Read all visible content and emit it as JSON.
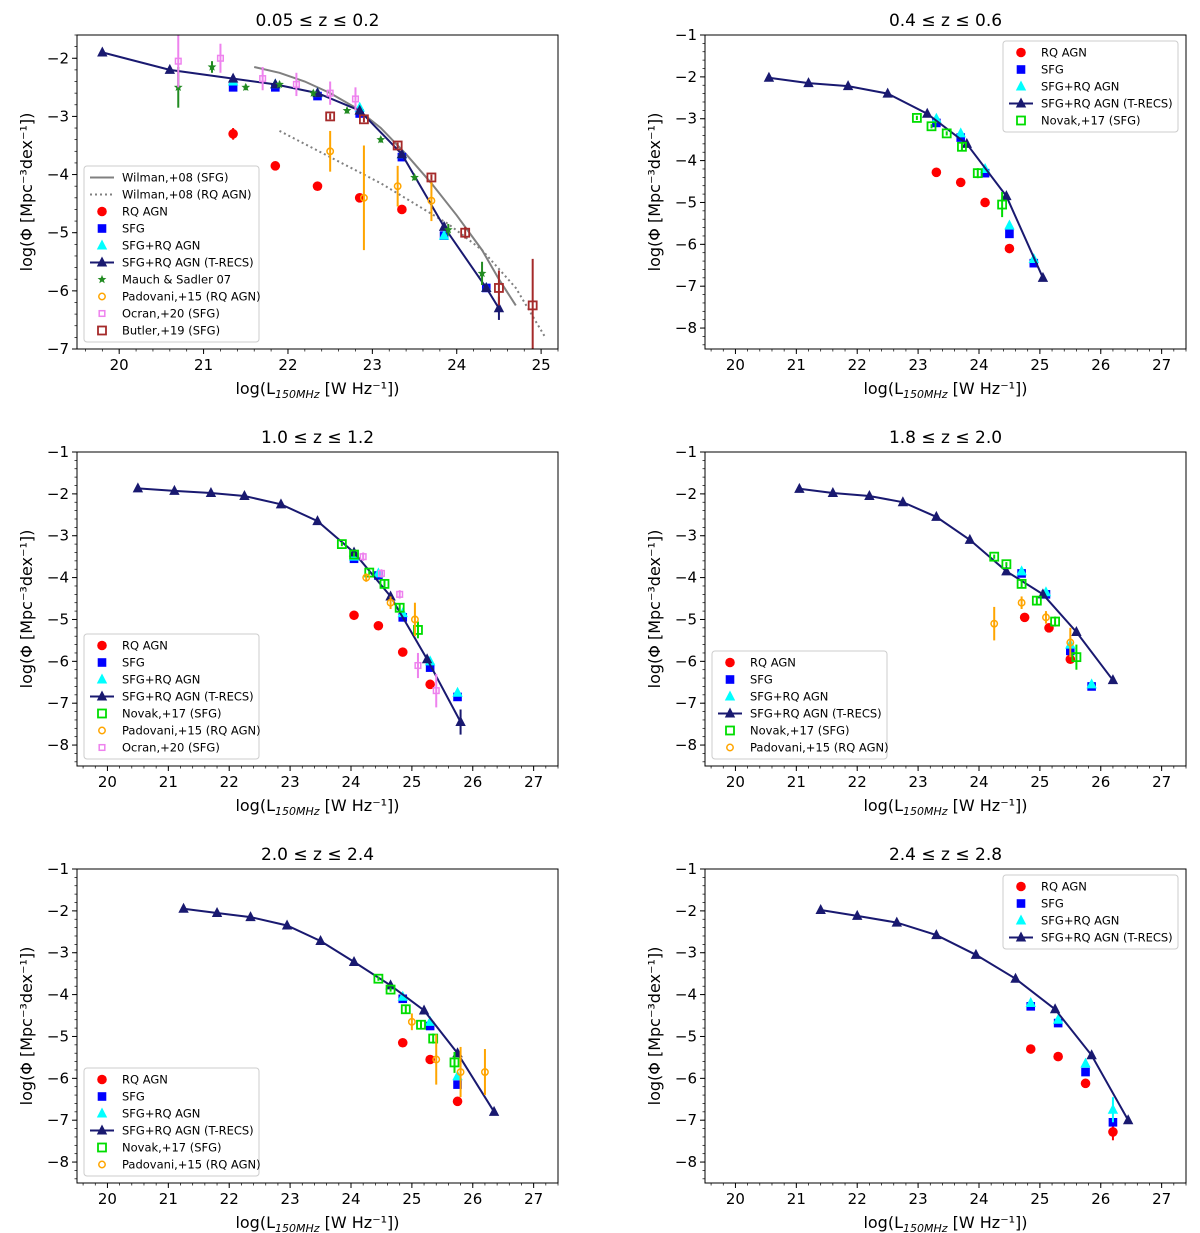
{
  "figure": {
    "ylabel": "log(Φ [Mpc⁻³dex⁻¹])",
    "xlabel_prefix": "log(L",
    "xlabel_sub": "150MHz",
    "xlabel_suffix": " [W Hz⁻¹])"
  },
  "styles": {
    "RQ AGN": {
      "marker": "circle",
      "color": "#ff0000",
      "label": "RQ AGN"
    },
    "SFG": {
      "marker": "square",
      "color": "#0000ff",
      "label": "SFG"
    },
    "SFG+RQ AGN": {
      "marker": "triangle",
      "color": "#00ffff",
      "label": "SFG+RQ AGN"
    },
    "T-RECS": {
      "marker": "triangle",
      "color": "#191970",
      "line": true,
      "label": "SFG+RQ AGN (T-RECS)"
    },
    "Novak": {
      "marker": "open-square",
      "color": "#00dd00",
      "label": "Novak,+17 (SFG)"
    },
    "Padovani": {
      "marker": "open-circle",
      "color": "#ffa500",
      "label": "Padovani,+15 (RQ AGN)"
    },
    "Ocran": {
      "marker": "small-open-square",
      "color": "#ee82ee",
      "label": "Ocran,+20 (SFG)"
    },
    "Butler": {
      "marker": "open-square",
      "color": "#a52a2a",
      "label": "Butler,+19 (SFG)"
    },
    "Mauch": {
      "marker": "star",
      "color": "#228b22",
      "label": "Mauch & Sadler 07"
    },
    "WilmanSFG": {
      "marker": "none",
      "color": "#808080",
      "line": "solid",
      "label": "Wilman,+08 (SFG)"
    },
    "WilmanAGN": {
      "marker": "none",
      "color": "#808080",
      "line": "dotted",
      "label": "Wilman,+08 (RQ AGN)"
    }
  },
  "chart_data": [
    {
      "type": "scatter",
      "title": "0.05 ≤ z ≤ 0.2",
      "xlim": [
        19.5,
        25.2
      ],
      "ylim": [
        -7,
        -1.6
      ],
      "xticks": [
        20,
        21,
        22,
        23,
        24,
        25
      ],
      "yticks": [
        -7,
        -6,
        -5,
        -4,
        -3,
        -2
      ],
      "legend_position": "lower-left",
      "legend": [
        "WilmanSFG",
        "WilmanAGN",
        "RQ AGN",
        "SFG",
        "SFG+RQ AGN",
        "T-RECS",
        "Mauch",
        "Padovani",
        "Ocran",
        "Butler"
      ],
      "series": [
        {
          "key": "WilmanSFG",
          "x": [
            21.6,
            21.9,
            22.2,
            22.5,
            22.8,
            23.1,
            23.4,
            23.7,
            24.0,
            24.3,
            24.5,
            24.7
          ],
          "y": [
            -2.15,
            -2.25,
            -2.4,
            -2.6,
            -2.85,
            -3.2,
            -3.65,
            -4.15,
            -4.7,
            -5.3,
            -5.8,
            -6.25
          ]
        },
        {
          "key": "WilmanAGN",
          "x": [
            21.9,
            22.3,
            22.7,
            23.1,
            23.5,
            23.9,
            24.3,
            24.7,
            25.05
          ],
          "y": [
            -3.25,
            -3.55,
            -3.85,
            -4.15,
            -4.5,
            -4.85,
            -5.3,
            -5.95,
            -6.8
          ]
        },
        {
          "key": "RQ AGN",
          "x": [
            21.35,
            21.85,
            22.35,
            22.85,
            23.35
          ],
          "y": [
            -3.3,
            -3.85,
            -4.2,
            -4.4,
            -4.6
          ],
          "yerr": [
            0.1,
            0.05,
            0.05,
            0.05,
            0.05
          ]
        },
        {
          "key": "SFG",
          "x": [
            21.35,
            21.85,
            22.35,
            22.85,
            23.35,
            23.85,
            24.35
          ],
          "y": [
            -2.5,
            -2.5,
            -2.65,
            -2.95,
            -3.7,
            -5.05,
            -5.95
          ]
        },
        {
          "key": "SFG+RQ AGN",
          "x": [
            21.35,
            21.85,
            22.35,
            22.85,
            23.35,
            23.85,
            24.35
          ],
          "y": [
            -2.4,
            -2.45,
            -2.6,
            -2.85,
            -3.65,
            -5.05,
            -5.95
          ]
        },
        {
          "key": "T-RECS",
          "x": [
            19.8,
            20.6,
            21.35,
            21.85,
            22.35,
            22.85,
            23.35,
            23.85,
            24.35,
            24.5
          ],
          "y": [
            -1.9,
            -2.2,
            -2.35,
            -2.45,
            -2.6,
            -2.9,
            -3.65,
            -4.9,
            -5.95,
            -6.3
          ],
          "yerr": [
            0,
            0,
            0,
            0,
            0,
            0,
            0,
            0,
            0,
            0.2
          ]
        },
        {
          "key": "Mauch",
          "x": [
            20.7,
            21.1,
            21.5,
            21.9,
            22.3,
            22.7,
            23.1,
            23.5,
            23.9,
            24.3
          ],
          "y": [
            -2.5,
            -2.15,
            -2.5,
            -2.45,
            -2.6,
            -2.9,
            -3.4,
            -4.05,
            -4.95,
            -5.7
          ],
          "yerr": [
            0.35,
            0.1,
            0.05,
            0.05,
            0.05,
            0.05,
            0.05,
            0.05,
            0.1,
            0.2
          ]
        },
        {
          "key": "Padovani",
          "x": [
            22.5,
            22.9,
            23.3,
            23.7
          ],
          "y": [
            -3.6,
            -4.4,
            -4.2,
            -4.45
          ],
          "yerr": [
            0.35,
            0.9,
            0.35,
            0.35
          ]
        },
        {
          "key": "Ocran",
          "x": [
            20.7,
            21.2,
            21.7,
            22.1,
            22.5,
            22.8
          ],
          "y": [
            -2.05,
            -2.0,
            -2.35,
            -2.45,
            -2.6,
            -2.7
          ],
          "yerr": [
            0.45,
            0.25,
            0.2,
            0.2,
            0.2,
            0.2
          ]
        },
        {
          "key": "Butler",
          "x": [
            22.5,
            22.9,
            23.3,
            23.7,
            24.1,
            24.5,
            24.9
          ],
          "y": [
            -3.0,
            -3.05,
            -3.5,
            -4.05,
            -5.0,
            -5.95,
            -6.25
          ],
          "yerr": [
            0.05,
            0.05,
            0.05,
            0.05,
            0.1,
            0.3,
            0.8
          ]
        }
      ]
    },
    {
      "type": "scatter",
      "title": "0.4 ≤ z ≤ 0.6",
      "xlim": [
        19.5,
        27.4
      ],
      "ylim": [
        -8.5,
        -1
      ],
      "xticks": [
        20,
        21,
        22,
        23,
        24,
        25,
        26,
        27
      ],
      "yticks": [
        -8,
        -7,
        -6,
        -5,
        -4,
        -3,
        -2,
        -1
      ],
      "legend_position": "upper-right",
      "legend": [
        "RQ AGN",
        "SFG",
        "SFG+RQ AGN",
        "T-RECS",
        "Novak"
      ],
      "series": [
        {
          "key": "RQ AGN",
          "x": [
            23.3,
            23.7,
            24.1,
            24.5
          ],
          "y": [
            -4.28,
            -4.52,
            -5.0,
            -6.1
          ]
        },
        {
          "key": "SFG",
          "x": [
            23.3,
            23.7,
            24.1,
            24.5,
            24.9
          ],
          "y": [
            -3.1,
            -3.45,
            -4.3,
            -5.75,
            -6.45
          ]
        },
        {
          "key": "SFG+RQ AGN",
          "x": [
            23.3,
            23.7,
            24.1,
            24.5,
            24.9
          ],
          "y": [
            -3.0,
            -3.35,
            -4.2,
            -5.55,
            -6.35
          ]
        },
        {
          "key": "T-RECS",
          "x": [
            20.55,
            21.2,
            21.85,
            22.5,
            23.15,
            23.8,
            24.45,
            25.05
          ],
          "y": [
            -2.02,
            -2.15,
            -2.22,
            -2.4,
            -2.88,
            -3.6,
            -4.85,
            -6.8
          ]
        },
        {
          "key": "Novak",
          "x": [
            22.98,
            23.22,
            23.47,
            23.72,
            23.98,
            24.38
          ],
          "y": [
            -2.98,
            -3.18,
            -3.35,
            -3.67,
            -4.3,
            -5.05
          ],
          "yerr": [
            0.05,
            0.05,
            0.05,
            0.08,
            0.12,
            0.3
          ]
        }
      ]
    },
    {
      "type": "scatter",
      "title": "1.0 ≤ z ≤ 1.2",
      "xlim": [
        19.5,
        27.4
      ],
      "ylim": [
        -8.5,
        -1
      ],
      "xticks": [
        20,
        21,
        22,
        23,
        24,
        25,
        26,
        27
      ],
      "yticks": [
        -8,
        -7,
        -6,
        -5,
        -4,
        -3,
        -2,
        -1
      ],
      "legend_position": "lower-left",
      "legend": [
        "RQ AGN",
        "SFG",
        "SFG+RQ AGN",
        "T-RECS",
        "Novak",
        "Padovani",
        "Ocran"
      ],
      "series": [
        {
          "key": "RQ AGN",
          "x": [
            24.05,
            24.45,
            24.85,
            25.3
          ],
          "y": [
            -4.9,
            -5.15,
            -5.78,
            -6.55
          ]
        },
        {
          "key": "SFG",
          "x": [
            24.05,
            24.45,
            24.85,
            25.3,
            25.75
          ],
          "y": [
            -3.55,
            -3.95,
            -4.95,
            -6.15,
            -6.85
          ]
        },
        {
          "key": "SFG+RQ AGN",
          "x": [
            24.05,
            24.45,
            24.85,
            25.3,
            25.75
          ],
          "y": [
            -3.5,
            -3.9,
            -4.85,
            -6.0,
            -6.75
          ]
        },
        {
          "key": "T-RECS",
          "x": [
            20.5,
            21.1,
            21.7,
            22.25,
            22.85,
            23.45,
            24.05,
            24.65,
            25.25,
            25.8
          ],
          "y": [
            -1.87,
            -1.93,
            -1.98,
            -2.05,
            -2.25,
            -2.65,
            -3.4,
            -4.45,
            -5.95,
            -7.45
          ],
          "yerr": [
            0,
            0,
            0,
            0,
            0,
            0,
            0,
            0,
            0,
            0.3
          ]
        },
        {
          "key": "Novak",
          "x": [
            23.85,
            24.05,
            24.3,
            24.55,
            24.8,
            25.1
          ],
          "y": [
            -3.2,
            -3.45,
            -3.88,
            -4.15,
            -4.72,
            -5.25
          ],
          "yerr": [
            0.05,
            0.05,
            0.05,
            0.08,
            0.1,
            0.2
          ]
        },
        {
          "key": "Padovani",
          "x": [
            24.25,
            24.65,
            25.05
          ],
          "y": [
            -4.0,
            -4.6,
            -5.0
          ],
          "yerr": [
            0.1,
            0.15,
            0.4
          ]
        },
        {
          "key": "Ocran",
          "x": [
            24.2,
            24.5,
            24.8,
            25.1,
            25.4
          ],
          "y": [
            -3.5,
            -3.9,
            -4.4,
            -6.1,
            -6.7
          ],
          "yerr": [
            0.1,
            0.1,
            0.1,
            0.3,
            0.4
          ]
        }
      ]
    },
    {
      "type": "scatter",
      "title": "1.8 ≤ z ≤ 2.0",
      "xlim": [
        19.5,
        27.4
      ],
      "ylim": [
        -8.5,
        -1
      ],
      "xticks": [
        20,
        21,
        22,
        23,
        24,
        25,
        26,
        27
      ],
      "yticks": [
        -8,
        -7,
        -6,
        -5,
        -4,
        -3,
        -2,
        -1
      ],
      "legend_position": "lower-left",
      "legend": [
        "RQ AGN",
        "SFG",
        "SFG+RQ AGN",
        "T-RECS",
        "Novak",
        "Padovani"
      ],
      "series": [
        {
          "key": "RQ AGN",
          "x": [
            24.75,
            25.15,
            25.5
          ],
          "y": [
            -4.95,
            -5.2,
            -5.95
          ]
        },
        {
          "key": "SFG",
          "x": [
            24.7,
            25.1,
            25.5,
            25.85
          ],
          "y": [
            -3.9,
            -4.4,
            -5.75,
            -6.6
          ]
        },
        {
          "key": "SFG+RQ AGN",
          "x": [
            24.7,
            25.1,
            25.5,
            25.85
          ],
          "y": [
            -3.85,
            -4.35,
            -5.6,
            -6.55
          ]
        },
        {
          "key": "T-RECS",
          "x": [
            21.05,
            21.6,
            22.2,
            22.75,
            23.3,
            23.85,
            24.45,
            25.05,
            25.6,
            26.2
          ],
          "y": [
            -1.88,
            -1.98,
            -2.05,
            -2.2,
            -2.55,
            -3.1,
            -3.85,
            -4.4,
            -5.3,
            -6.45
          ]
        },
        {
          "key": "Novak",
          "x": [
            24.25,
            24.45,
            24.7,
            24.95,
            25.25,
            25.6
          ],
          "y": [
            -3.5,
            -3.68,
            -4.15,
            -4.55,
            -5.05,
            -5.9
          ],
          "yerr": [
            0.05,
            0.05,
            0.08,
            0.1,
            0.12,
            0.3
          ]
        },
        {
          "key": "Padovani",
          "x": [
            24.25,
            24.7,
            25.1,
            25.5
          ],
          "y": [
            -5.1,
            -4.6,
            -4.95,
            -5.55
          ],
          "yerr": [
            0.4,
            0.15,
            0.15,
            0.35
          ]
        }
      ]
    },
    {
      "type": "scatter",
      "title": "2.0 ≤ z ≤ 2.4",
      "xlim": [
        19.5,
        27.4
      ],
      "ylim": [
        -8.5,
        -1
      ],
      "xticks": [
        20,
        21,
        22,
        23,
        24,
        25,
        26,
        27
      ],
      "yticks": [
        -8,
        -7,
        -6,
        -5,
        -4,
        -3,
        -2,
        -1
      ],
      "legend_position": "lower-left",
      "legend": [
        "RQ AGN",
        "SFG",
        "SFG+RQ AGN",
        "T-RECS",
        "Novak",
        "Padovani"
      ],
      "series": [
        {
          "key": "RQ AGN",
          "x": [
            24.85,
            25.3,
            25.75
          ],
          "y": [
            -5.15,
            -5.55,
            -6.55
          ]
        },
        {
          "key": "SFG",
          "x": [
            24.85,
            25.3,
            25.75
          ],
          "y": [
            -4.1,
            -4.75,
            -6.15
          ]
        },
        {
          "key": "SFG+RQ AGN",
          "x": [
            24.85,
            25.3,
            25.75
          ],
          "y": [
            -4.05,
            -4.65,
            -5.95
          ]
        },
        {
          "key": "T-RECS",
          "x": [
            21.25,
            21.8,
            22.35,
            22.95,
            23.5,
            24.05,
            24.65,
            25.2,
            25.75,
            26.35
          ],
          "y": [
            -1.95,
            -2.05,
            -2.15,
            -2.35,
            -2.72,
            -3.22,
            -3.78,
            -4.38,
            -5.4,
            -6.8
          ]
        },
        {
          "key": "Novak",
          "x": [
            24.45,
            24.65,
            24.9,
            25.15,
            25.35,
            25.7
          ],
          "y": [
            -3.62,
            -3.88,
            -4.35,
            -4.72,
            -5.05,
            -5.62
          ],
          "yerr": [
            0.05,
            0.05,
            0.08,
            0.1,
            0.12,
            0.25
          ]
        },
        {
          "key": "Padovani",
          "x": [
            25.0,
            25.4,
            25.8,
            26.2
          ],
          "y": [
            -4.65,
            -5.55,
            -5.85,
            -5.85
          ],
          "yerr": [
            0.2,
            0.6,
            0.6,
            0.55
          ]
        }
      ]
    },
    {
      "type": "scatter",
      "title": "2.4 ≤ z ≤ 2.8",
      "xlim": [
        19.5,
        27.4
      ],
      "ylim": [
        -8.5,
        -1
      ],
      "xticks": [
        20,
        21,
        22,
        23,
        24,
        25,
        26,
        27
      ],
      "yticks": [
        -8,
        -7,
        -6,
        -5,
        -4,
        -3,
        -2,
        -1
      ],
      "legend_position": "upper-right",
      "legend": [
        "RQ AGN",
        "SFG",
        "SFG+RQ AGN",
        "T-RECS"
      ],
      "series": [
        {
          "key": "RQ AGN",
          "x": [
            24.85,
            25.3,
            25.75,
            26.2
          ],
          "y": [
            -5.3,
            -5.48,
            -6.12,
            -7.28
          ],
          "yerr": [
            0,
            0,
            0,
            0.2
          ]
        },
        {
          "key": "SFG",
          "x": [
            24.85,
            25.3,
            25.75,
            26.2
          ],
          "y": [
            -4.28,
            -4.68,
            -5.85,
            -7.05
          ]
        },
        {
          "key": "SFG+RQ AGN",
          "x": [
            24.85,
            25.3,
            25.75,
            26.2
          ],
          "y": [
            -4.2,
            -4.6,
            -5.65,
            -6.75
          ],
          "yerr": [
            0,
            0,
            0,
            0.3
          ]
        },
        {
          "key": "T-RECS",
          "x": [
            21.4,
            22.0,
            22.65,
            23.3,
            23.95,
            24.6,
            25.25,
            25.85,
            26.45
          ],
          "y": [
            -1.98,
            -2.12,
            -2.28,
            -2.58,
            -3.05,
            -3.62,
            -4.35,
            -5.45,
            -7.0
          ]
        }
      ]
    }
  ]
}
